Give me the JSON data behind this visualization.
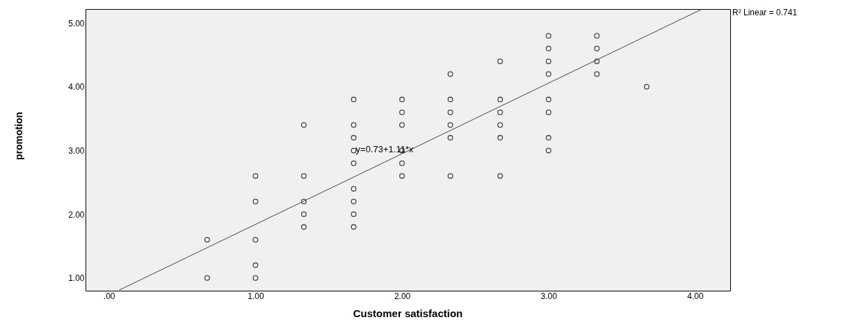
{
  "chart_data": {
    "type": "scatter",
    "xlabel": "Customer satisfaction",
    "ylabel": "promotion",
    "xlim": [
      -0.16,
      4.24
    ],
    "ylim": [
      0.8,
      5.22
    ],
    "xticks": [
      {
        "value": 0,
        "label": ".00"
      },
      {
        "value": 1,
        "label": "1.00"
      },
      {
        "value": 2,
        "label": "2.00"
      },
      {
        "value": 3,
        "label": "3.00"
      },
      {
        "value": 4,
        "label": "4.00"
      }
    ],
    "yticks": [
      {
        "value": 1,
        "label": "1.00"
      },
      {
        "value": 2,
        "label": "2.00"
      },
      {
        "value": 3,
        "label": "3.00"
      },
      {
        "value": 4,
        "label": "4.00"
      },
      {
        "value": 5,
        "label": "5.00"
      }
    ],
    "grid": false,
    "marker": "circle",
    "series": [
      {
        "type": "scatter",
        "color": "#000000",
        "x": [
          0.67,
          0.67,
          1,
          1,
          1,
          1,
          1,
          1.33,
          1.33,
          1.33,
          1.33,
          1.33,
          1.67,
          1.67,
          1.67,
          1.67,
          1.67,
          1.67,
          1.67,
          1.67,
          1.67,
          2,
          2,
          2,
          2,
          2,
          2,
          2.33,
          2.33,
          2.33,
          2.33,
          2.33,
          2.33,
          2.67,
          2.67,
          2.67,
          2.67,
          2.67,
          2.67,
          3,
          3,
          3,
          3,
          3,
          3,
          3,
          3,
          3.33,
          3.33,
          3.33,
          3.33,
          3.67
        ],
        "values": [
          1.6,
          1.0,
          2.6,
          2.2,
          1.6,
          1.2,
          1.0,
          3.4,
          2.6,
          2.2,
          2.0,
          1.8,
          3.8,
          3.4,
          3.2,
          3.0,
          2.8,
          2.4,
          2.2,
          2.0,
          1.8,
          3.8,
          3.6,
          3.4,
          3.0,
          2.8,
          2.6,
          4.2,
          3.8,
          3.6,
          3.4,
          3.2,
          2.6,
          4.4,
          3.8,
          3.6,
          3.4,
          3.2,
          2.6,
          4.8,
          4.6,
          4.4,
          4.2,
          3.8,
          3.6,
          3.2,
          3.0,
          4.8,
          4.6,
          4.4,
          4.2,
          4.0
        ]
      },
      {
        "type": "line",
        "marker": "none",
        "color": "#444444",
        "x": [
          0.07,
          4.04
        ],
        "values": [
          0.81,
          5.21
        ]
      }
    ],
    "annotations": [
      "R² Linear = 0.741",
      "y=0.73+1.11*x"
    ]
  }
}
